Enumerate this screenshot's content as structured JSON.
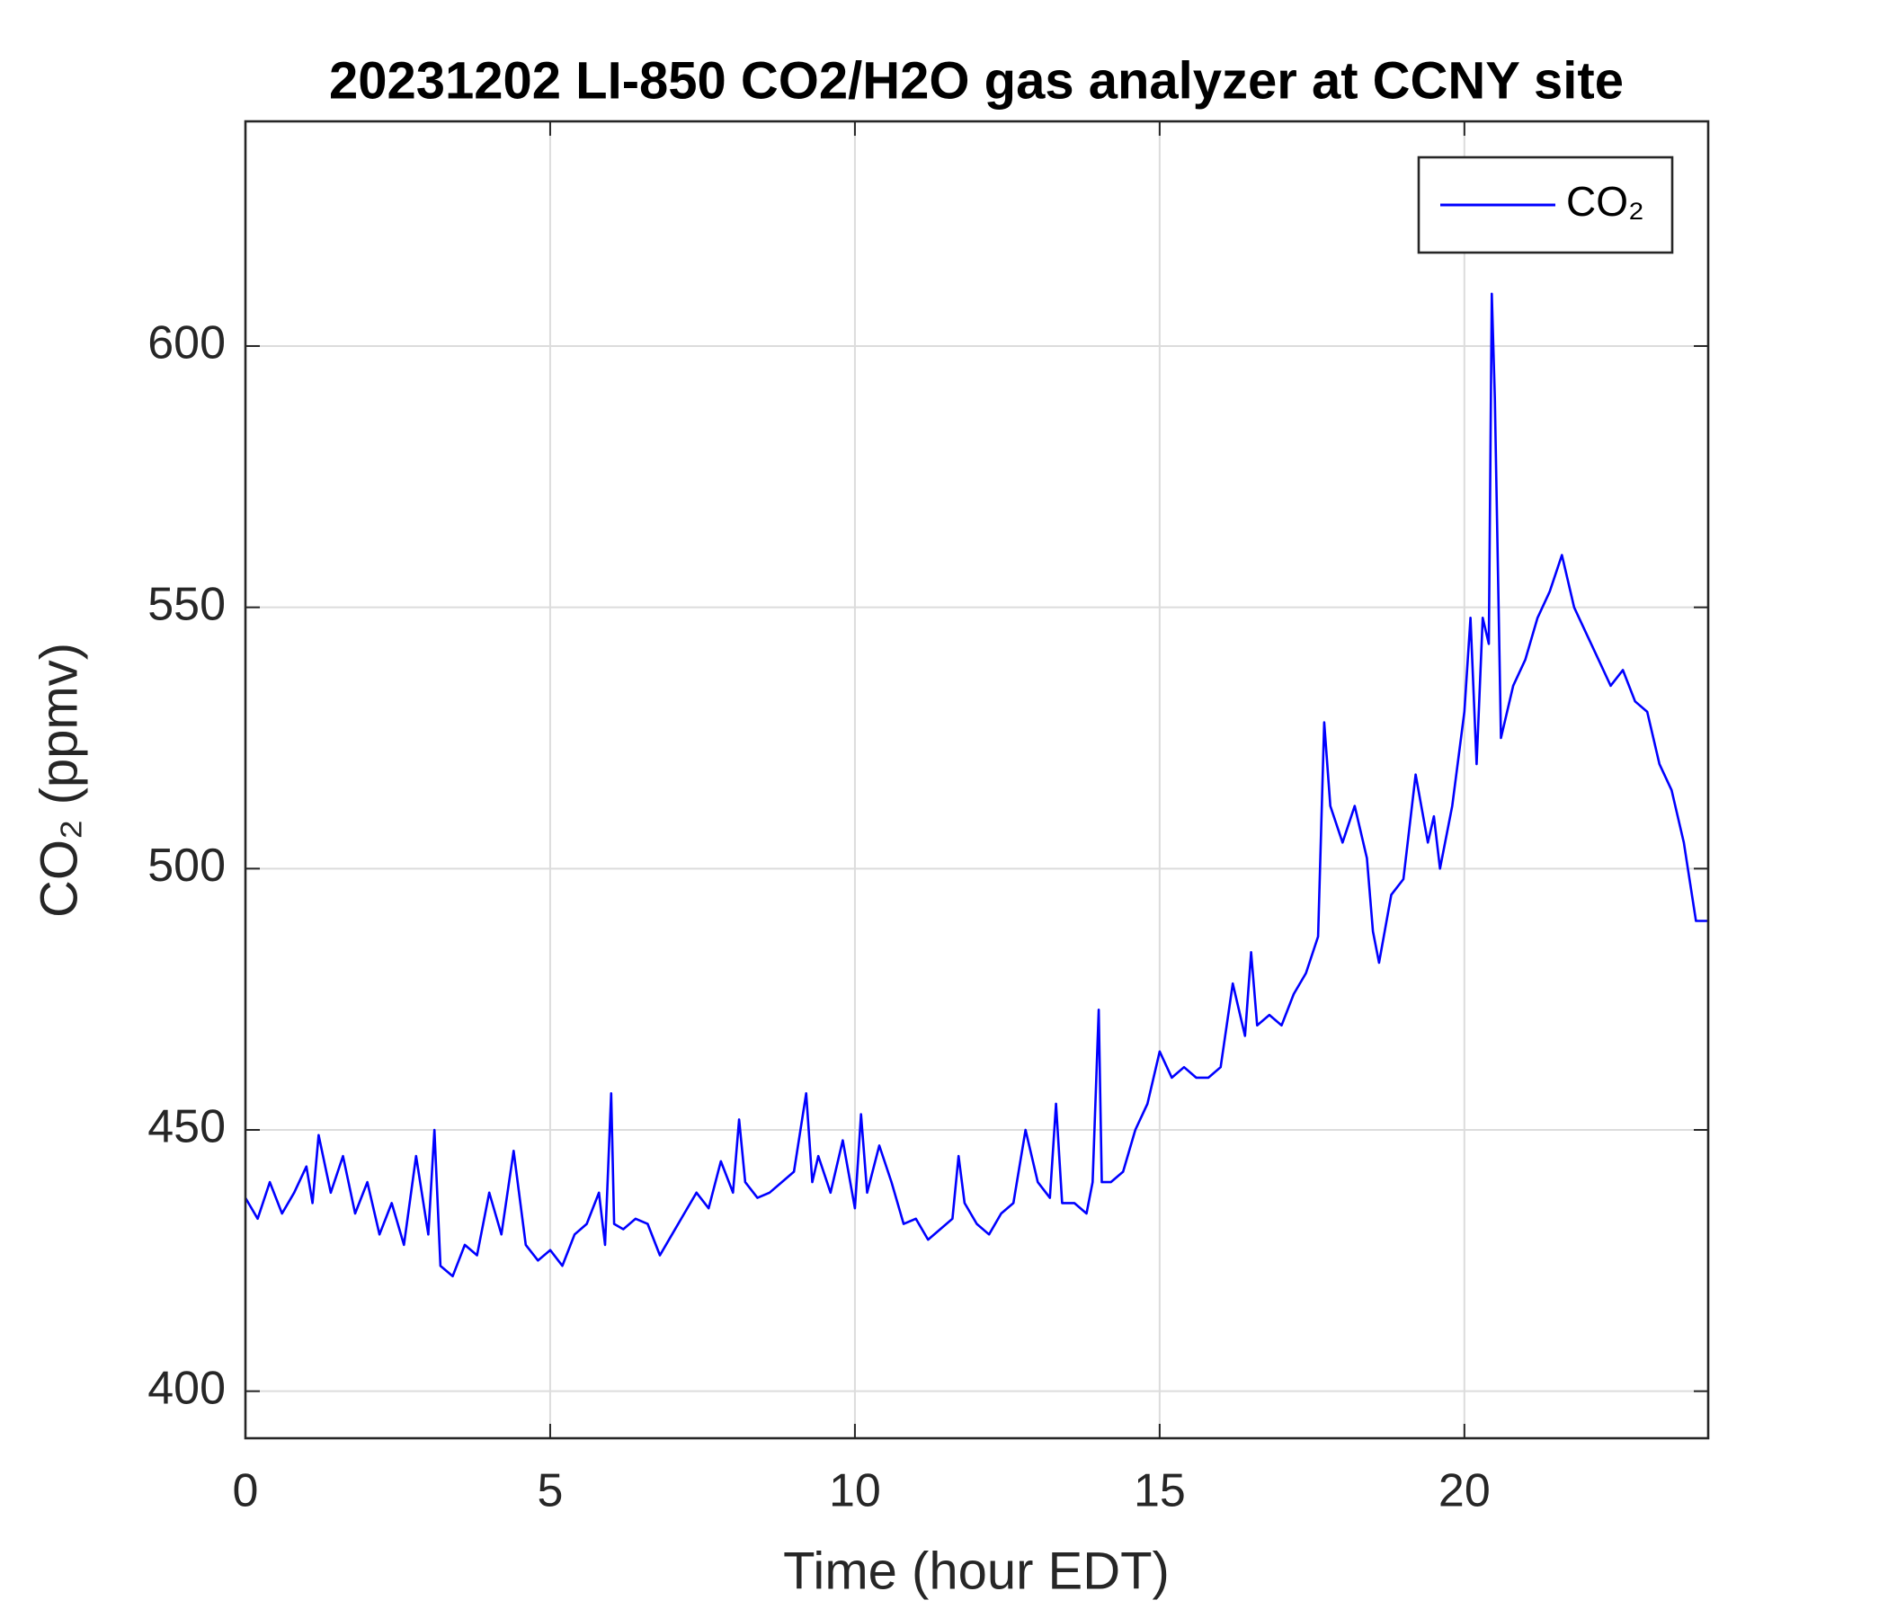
{
  "chart_data": {
    "type": "line",
    "title": "20231202 LI-850 CO2/H2O gas analyzer at CCNY site",
    "x_label": "Time (hour EDT)",
    "y_label": "CO₂ (ppmv)",
    "x": [
      0,
      0.2,
      0.4,
      0.6,
      0.8,
      1.0,
      1.1,
      1.2,
      1.4,
      1.6,
      1.8,
      2.0,
      2.2,
      2.4,
      2.6,
      2.8,
      3.0,
      3.1,
      3.2,
      3.4,
      3.6,
      3.8,
      4.0,
      4.2,
      4.4,
      4.6,
      4.8,
      5.0,
      5.2,
      5.4,
      5.6,
      5.8,
      5.9,
      6.0,
      6.05,
      6.2,
      6.4,
      6.6,
      6.8,
      7.0,
      7.2,
      7.4,
      7.6,
      7.8,
      8.0,
      8.1,
      8.2,
      8.4,
      8.6,
      8.8,
      9.0,
      9.2,
      9.3,
      9.4,
      9.6,
      9.8,
      10.0,
      10.1,
      10.2,
      10.4,
      10.6,
      10.8,
      11.0,
      11.2,
      11.4,
      11.6,
      11.7,
      11.8,
      12.0,
      12.2,
      12.4,
      12.6,
      12.8,
      13.0,
      13.2,
      13.3,
      13.4,
      13.6,
      13.8,
      13.9,
      14.0,
      14.05,
      14.2,
      14.4,
      14.6,
      14.8,
      15.0,
      15.2,
      15.4,
      15.6,
      15.8,
      16.0,
      16.2,
      16.4,
      16.5,
      16.6,
      16.8,
      17.0,
      17.2,
      17.4,
      17.6,
      17.7,
      17.8,
      18.0,
      18.2,
      18.4,
      18.5,
      18.6,
      18.8,
      19.0,
      19.2,
      19.4,
      19.5,
      19.6,
      19.8,
      20.0,
      20.1,
      20.2,
      20.3,
      20.4,
      20.45,
      20.5,
      20.6,
      20.8,
      21.0,
      21.2,
      21.4,
      21.6,
      21.8,
      22.0,
      22.2,
      22.4,
      22.6,
      22.8,
      23.0,
      23.2,
      23.4,
      23.6,
      23.8,
      24.0
    ],
    "series": [
      {
        "name": "CO₂",
        "color": "#0000ff",
        "values": [
          437,
          433,
          440,
          434,
          438,
          443,
          436,
          449,
          438,
          445,
          434,
          440,
          430,
          436,
          428,
          445,
          430,
          450,
          424,
          422,
          428,
          426,
          438,
          430,
          446,
          428,
          425,
          427,
          424,
          430,
          432,
          438,
          428,
          457,
          432,
          431,
          433,
          432,
          426,
          430,
          434,
          438,
          435,
          444,
          438,
          452,
          440,
          437,
          438,
          440,
          442,
          457,
          440,
          445,
          438,
          448,
          435,
          453,
          438,
          447,
          440,
          432,
          433,
          429,
          431,
          433,
          445,
          436,
          432,
          430,
          434,
          436,
          450,
          440,
          437,
          455,
          436,
          436,
          434,
          440,
          473,
          440,
          440,
          442,
          450,
          455,
          465,
          460,
          462,
          460,
          460,
          462,
          478,
          468,
          484,
          470,
          472,
          470,
          476,
          480,
          487,
          528,
          512,
          505,
          512,
          502,
          488,
          482,
          495,
          498,
          518,
          505,
          510,
          500,
          512,
          530,
          548,
          520,
          548,
          543,
          610,
          590,
          525,
          535,
          540,
          548,
          553,
          560,
          550,
          545,
          540,
          535,
          538,
          532,
          530,
          520,
          515,
          505,
          490,
          490
        ]
      }
    ],
    "xlim": [
      0,
      24
    ],
    "ylim": [
      391,
      643
    ],
    "xticks": [
      0,
      5,
      10,
      15,
      20
    ],
    "yticks": [
      400,
      450,
      500,
      550,
      600
    ],
    "grid": true,
    "legend": "northeast"
  }
}
